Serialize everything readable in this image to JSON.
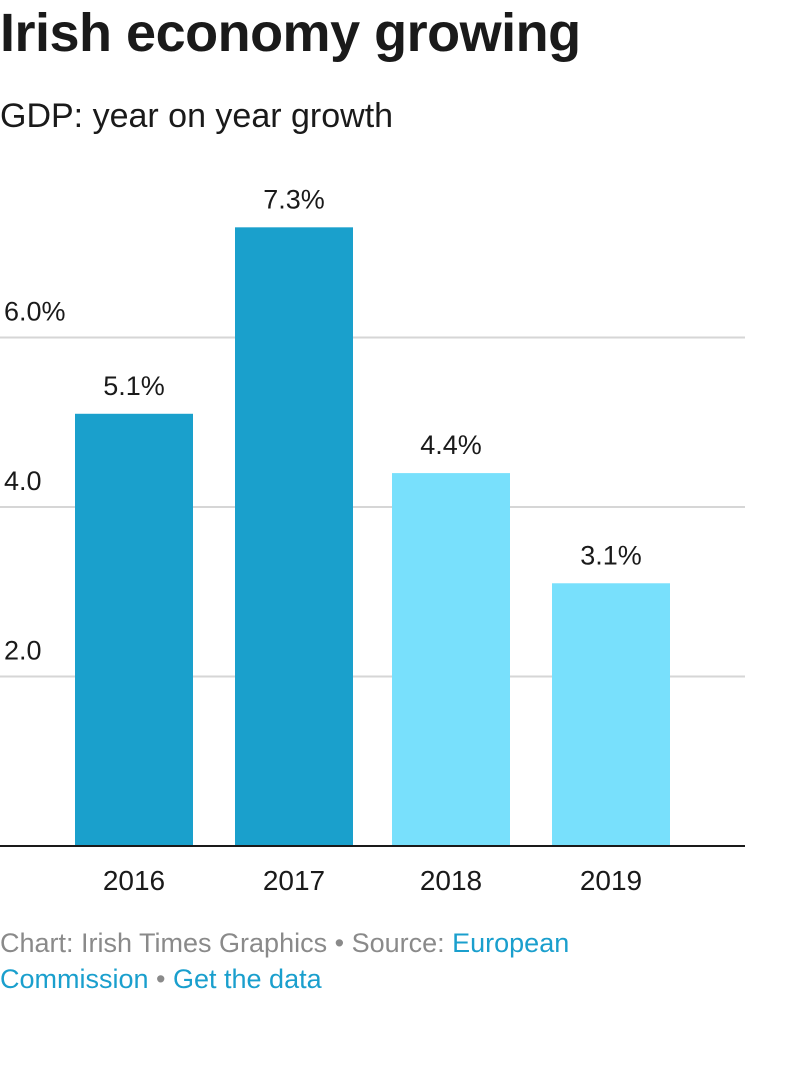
{
  "chart_data": {
    "type": "bar",
    "title": "Irish economy growing",
    "subtitle": "GDP: year on year growth",
    "categories": [
      "2016",
      "2017",
      "2018",
      "2019"
    ],
    "values": [
      5.1,
      7.3,
      4.4,
      3.1
    ],
    "value_labels": [
      "5.1%",
      "7.3%",
      "4.4%",
      "3.1%"
    ],
    "bar_colors": [
      "#1aa0cc",
      "#1aa0cc",
      "#78e0fc",
      "#78e0fc"
    ],
    "y_ticks": [
      {
        "value": 2,
        "label": "2.0"
      },
      {
        "value": 4,
        "label": "4.0"
      },
      {
        "value": 6,
        "label": "6.0%"
      }
    ],
    "ylim": [
      0,
      8
    ],
    "grid": true,
    "xlabel": "",
    "ylabel": ""
  },
  "footer": {
    "credit": "Chart: Irish Times Graphics",
    "separator": " • ",
    "source_prefix": "Source: ",
    "source_link": "European Commission",
    "data_link": "Get the data"
  },
  "colors": {
    "grid": "#d6d6d6",
    "axis": "#1a1a1a",
    "text": "#1a1a1a",
    "link": "#1a9fcd"
  }
}
